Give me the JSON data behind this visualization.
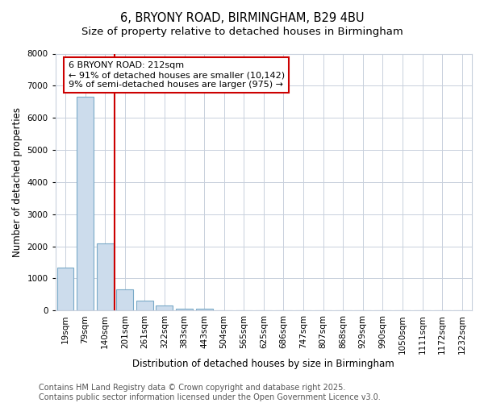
{
  "title": "6, BRYONY ROAD, BIRMINGHAM, B29 4BU",
  "subtitle": "Size of property relative to detached houses in Birmingham",
  "xlabel": "Distribution of detached houses by size in Birmingham",
  "ylabel": "Number of detached properties",
  "categories": [
    "19sqm",
    "79sqm",
    "140sqm",
    "201sqm",
    "261sqm",
    "322sqm",
    "383sqm",
    "443sqm",
    "504sqm",
    "565sqm",
    "625sqm",
    "686sqm",
    "747sqm",
    "807sqm",
    "868sqm",
    "929sqm",
    "990sqm",
    "1050sqm",
    "1111sqm",
    "1172sqm",
    "1232sqm"
  ],
  "values": [
    1350,
    6650,
    2100,
    650,
    310,
    150,
    60,
    60,
    0,
    0,
    0,
    0,
    0,
    0,
    0,
    0,
    0,
    0,
    0,
    0,
    0
  ],
  "bar_color": "#ccdcec",
  "bar_edge_color": "#7aaac8",
  "property_line_x": 2.5,
  "property_line_color": "#cc0000",
  "annotation_text": "6 BRYONY ROAD: 212sqm\n← 91% of detached houses are smaller (10,142)\n9% of semi-detached houses are larger (975) →",
  "annotation_box_facecolor": "#ffffff",
  "annotation_box_edgecolor": "#cc0000",
  "ylim": [
    0,
    8000
  ],
  "yticks": [
    0,
    1000,
    2000,
    3000,
    4000,
    5000,
    6000,
    7000,
    8000
  ],
  "background_color": "#ffffff",
  "plot_background_color": "#ffffff",
  "grid_color": "#c8d0dc",
  "footer_line1": "Contains HM Land Registry data © Crown copyright and database right 2025.",
  "footer_line2": "Contains public sector information licensed under the Open Government Licence v3.0.",
  "title_fontsize": 10.5,
  "subtitle_fontsize": 9.5,
  "axis_label_fontsize": 8.5,
  "tick_fontsize": 7.5,
  "annotation_fontsize": 8,
  "footer_fontsize": 7
}
